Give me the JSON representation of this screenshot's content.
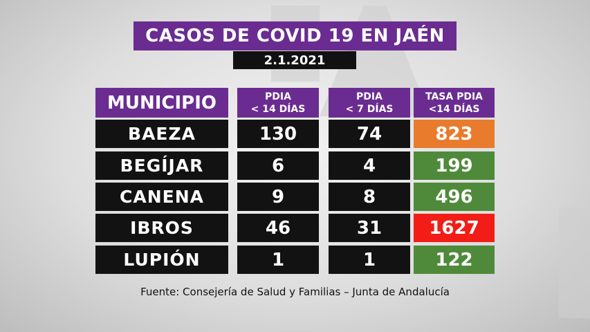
{
  "title": "CASOS DE COVID 19 EN JAÉN",
  "date": "2.1.2021",
  "headers": {
    "municipio": "MUNICIPIO",
    "pdia14_line1": "PDIA",
    "pdia14_line2": "< 14 DÍAS",
    "pdia7_line1": "PDIA",
    "pdia7_line2": "< 7 DÍAS",
    "tasa_line1": "TASA PDIA",
    "tasa_line2": "<14 DÍAS"
  },
  "rows": [
    {
      "municipio": "BAEZA",
      "pdia14": "130",
      "pdia7": "74",
      "tasa": "823",
      "tasa_color": "#e87b2c"
    },
    {
      "municipio": "BEGÍJAR",
      "pdia14": "6",
      "pdia7": "4",
      "tasa": "199",
      "tasa_color": "#4f8a3a"
    },
    {
      "municipio": "CANENA",
      "pdia14": "9",
      "pdia7": "8",
      "tasa": "496",
      "tasa_color": "#4f8a3a"
    },
    {
      "municipio": "IBROS",
      "pdia14": "46",
      "pdia7": "31",
      "tasa": "1627",
      "tasa_color": "#f21d16"
    },
    {
      "municipio": "LUPIÓN",
      "pdia14": "1",
      "pdia7": "1",
      "tasa": "122",
      "tasa_color": "#4f8a3a"
    }
  ],
  "source": "Fuente: Consejería de Salud y Familias – Junta de Andalucía"
}
